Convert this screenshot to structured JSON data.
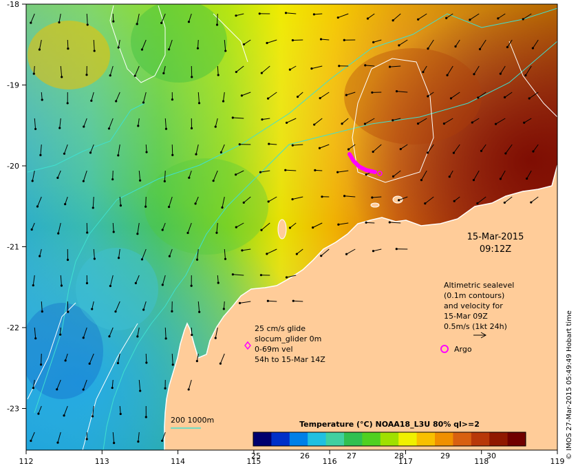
{
  "map": {
    "lon_ticks": [
      "112",
      "113",
      "114",
      "115",
      "116",
      "117",
      "118",
      "119"
    ],
    "lat_ticks": [
      "-18",
      "-19",
      "-20",
      "-21",
      "-22",
      "-23"
    ]
  },
  "date_label": {
    "date": "15-Mar-2015",
    "time": "09:12Z"
  },
  "sealevel_note": {
    "lines": [
      "Altimetric sealevel",
      "(0.1m contours)",
      "and velocity for",
      "15-Mar 09Z",
      "0.5m/s (1kt 24h)"
    ]
  },
  "argo_legend": {
    "label": "Argo"
  },
  "glider_legend": {
    "lines": [
      "25 cm/s glide",
      "slocum_glider 0m",
      "0-69m vel",
      "54h to 15-Mar 14Z"
    ]
  },
  "depth_legend": {
    "label": "200  1000m"
  },
  "colorbar": {
    "title": "Temperature (°C) NOAA18_L3U 80% ql>=2",
    "ticks": [
      "25",
      "26",
      "27",
      "28",
      "29",
      "30"
    ],
    "colors": [
      "#00006e",
      "#0030c8",
      "#0080e8",
      "#20c0e0",
      "#40d0a0",
      "#30c050",
      "#50d020",
      "#a0e000",
      "#f0f000",
      "#f8c000",
      "#f09000",
      "#d86010",
      "#b83808",
      "#901800",
      "#700000"
    ]
  },
  "credit": {
    "text": "© IMOS 27-Mar-2015 05:49:49 Hobart time"
  },
  "colors": {
    "land": "#ffcc99",
    "glider_track": "#ff00ff",
    "argo": "#ff00ff",
    "isobath": "#40e0d0",
    "contour": "#ffffff"
  }
}
